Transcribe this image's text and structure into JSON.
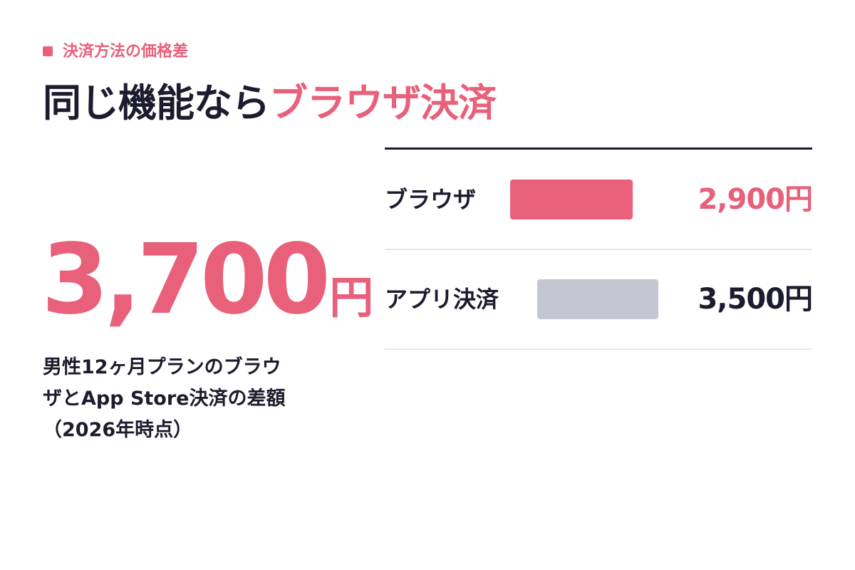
{
  "header": {
    "tag": "決済方法の価格差",
    "title_main": "同じ機能なら",
    "title_accent": "ブラウザ決済"
  },
  "highlight": {
    "value": "3,700",
    "unit": "円",
    "caption": [
      "男性12ヶ月プランのブラウ",
      "ザとApp Store決済の差額",
      "（2026年時点）"
    ]
  },
  "comparison": {
    "rows": [
      {
        "label": "ブラウザ",
        "price": "2,900円"
      },
      {
        "label": "アプリ決済",
        "price": "3,500円"
      }
    ]
  }
}
